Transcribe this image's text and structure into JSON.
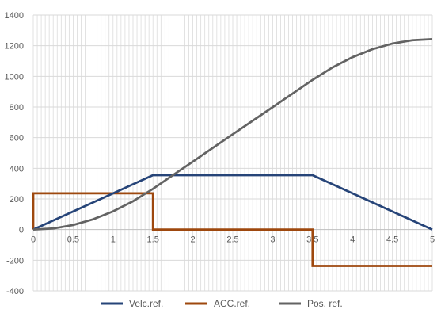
{
  "chart_data": {
    "type": "line",
    "title": "",
    "xlabel": "",
    "ylabel": "",
    "xlim": [
      0,
      5
    ],
    "ylim": [
      -400,
      1400
    ],
    "x_ticks": [
      "0",
      "0.5",
      "1",
      "1.5",
      "2",
      "2.5",
      "3",
      "3.5",
      "4",
      "4.5",
      "5"
    ],
    "y_ticks": [
      "-400",
      "-200",
      "0",
      "200",
      "400",
      "600",
      "800",
      "1000",
      "1200",
      "1400"
    ],
    "grid": "vertical minor gridlines every 0.05, horizontal gridlines every 200",
    "legend_position": "bottom",
    "series": [
      {
        "name": "Velc.ref.",
        "color": "#264478",
        "points": [
          [
            0,
            0
          ],
          [
            1.5,
            355
          ],
          [
            3.5,
            355
          ],
          [
            5,
            0
          ]
        ]
      },
      {
        "name": "ACC.ref.",
        "color": "#9E480E",
        "points": [
          [
            0,
            0
          ],
          [
            0,
            237
          ],
          [
            1.5,
            237
          ],
          [
            1.5,
            0
          ],
          [
            3.5,
            0
          ],
          [
            3.5,
            -237
          ],
          [
            5,
            -237
          ]
        ]
      },
      {
        "name": "Pos. ref.",
        "color": "#636363",
        "points": [
          [
            0,
            0
          ],
          [
            0.25,
            7
          ],
          [
            0.5,
            30
          ],
          [
            0.75,
            67
          ],
          [
            1,
            119
          ],
          [
            1.25,
            185
          ],
          [
            1.5,
            266
          ],
          [
            1.75,
            355
          ],
          [
            2,
            444
          ],
          [
            2.5,
            622
          ],
          [
            3,
            799
          ],
          [
            3.25,
            888
          ],
          [
            3.5,
            977
          ],
          [
            3.75,
            1058
          ],
          [
            4,
            1125
          ],
          [
            4.25,
            1177
          ],
          [
            4.5,
            1214
          ],
          [
            4.75,
            1236
          ],
          [
            5,
            1243
          ]
        ]
      }
    ]
  }
}
